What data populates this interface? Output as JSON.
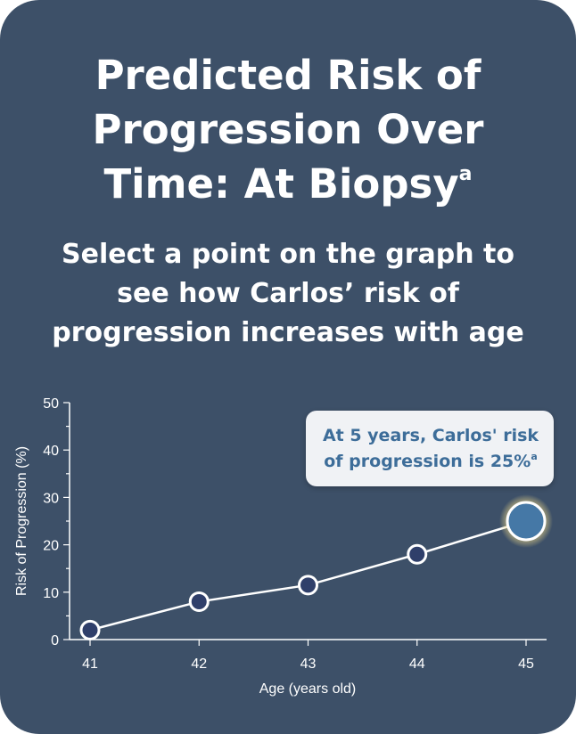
{
  "header": {
    "title_lines": [
      "Predicted Risk of",
      "Progression Over",
      "Time: At Biopsy"
    ],
    "title_footnote": "a",
    "instruction_lines": [
      "Select a point on the graph to",
      "see how Carlos’ risk of",
      "progression increases with age"
    ]
  },
  "tooltip": {
    "lines": [
      "At 5 years, Carlos' risk",
      "of progression is 25%"
    ],
    "footnote": "a"
  },
  "colors": {
    "card_background": "#3d5068",
    "point_fill": "#2f3f6a",
    "selected_point_fill": "#4578a6",
    "line": "#ffffff",
    "tooltip_text": "#3d6d99",
    "tooltip_background": "#f0f2f5"
  },
  "chart_data": {
    "type": "line",
    "xlabel": "Age (years old)",
    "ylabel": "Risk of Progression (%)",
    "x": [
      41,
      42,
      43,
      44,
      45
    ],
    "y": [
      2,
      8,
      11.5,
      18,
      25
    ],
    "xticks": [
      "41",
      "42",
      "43",
      "44",
      "45"
    ],
    "yticks": [
      "0",
      "10",
      "20",
      "30",
      "40",
      "50"
    ],
    "ylim": [
      0,
      50
    ],
    "xlim": [
      41,
      45
    ],
    "grid": false,
    "selected_index": 4
  }
}
